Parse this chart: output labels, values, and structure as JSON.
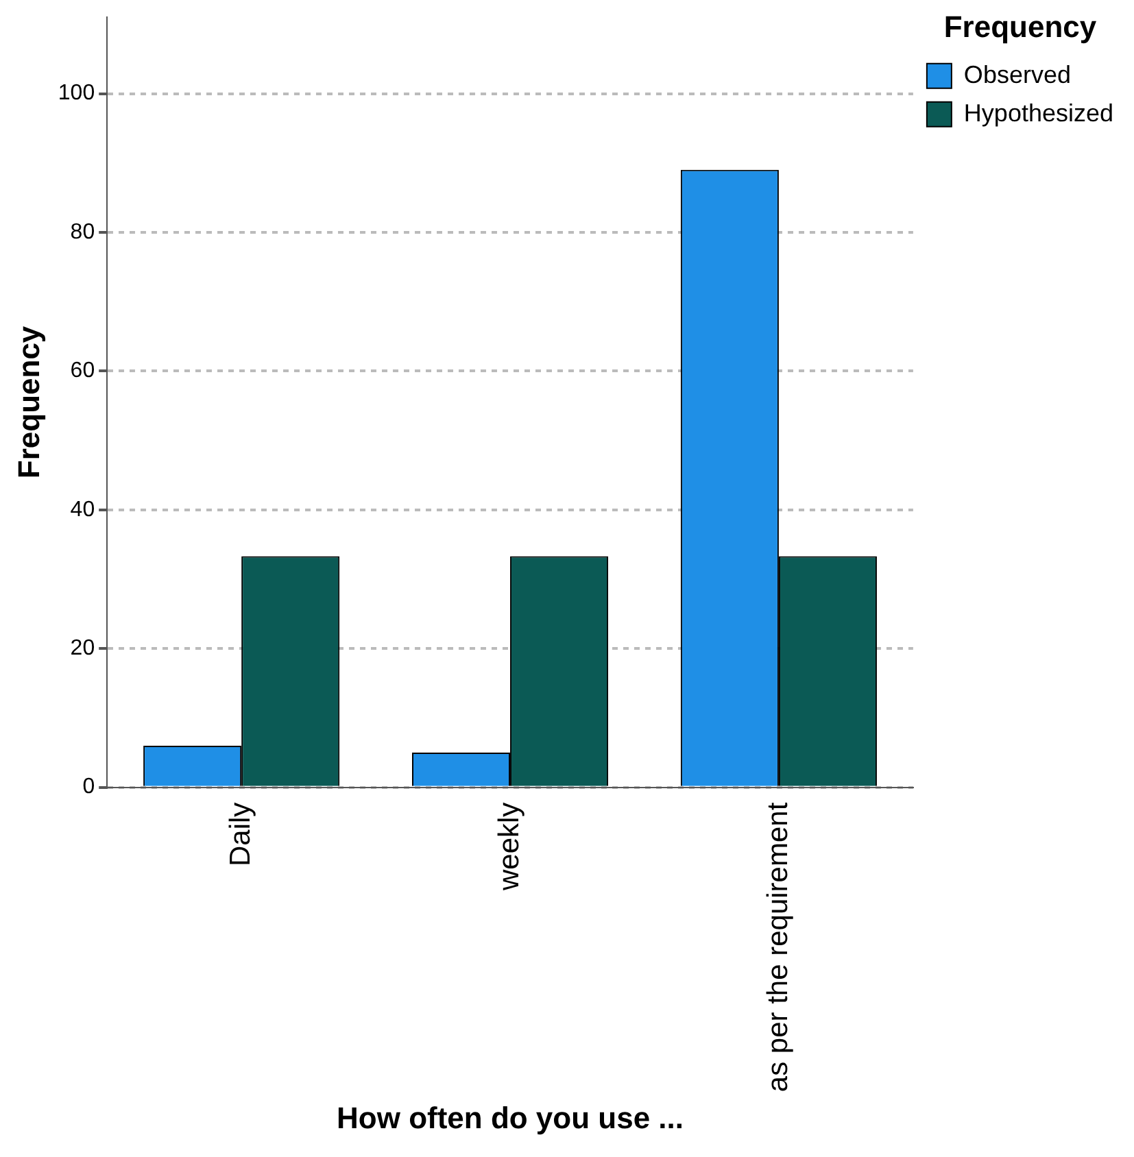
{
  "chart_data": {
    "type": "bar",
    "xlabel": "How often do you use ...",
    "ylabel": "Frequency",
    "legend_title": "Frequency",
    "legend": "top right",
    "grid": "y",
    "line_style": "dashed",
    "categories": [
      "Daily",
      "weekly",
      "as per the requirement"
    ],
    "series": [
      {
        "name": "Observed",
        "color": "#1f8fe6",
        "values": [
          6,
          5,
          89
        ]
      },
      {
        "name": "Hypothesized",
        "color": "#0b5a55",
        "values": [
          33.3,
          33.3,
          33.3
        ]
      }
    ],
    "ylim": [
      0,
      111
    ],
    "yticks": [
      0,
      20,
      40,
      60,
      80,
      100
    ]
  }
}
